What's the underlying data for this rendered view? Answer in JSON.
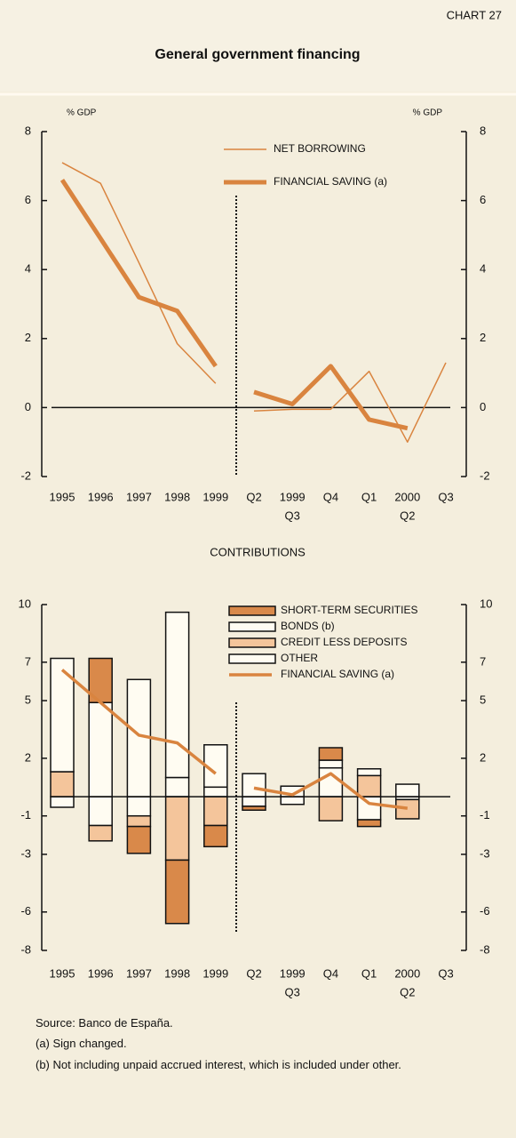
{
  "header": {
    "label": "CHART 27",
    "title": "General government financing"
  },
  "chart_data": [
    {
      "type": "line",
      "y_label": "% GDP",
      "y2_label": "% GDP",
      "categories": [
        "1995",
        "1996",
        "1997",
        "1998",
        "1999",
        null,
        "Q2",
        "Q3",
        "Q4",
        "Q1",
        "Q2",
        "Q3"
      ],
      "year_labels": [
        null,
        null,
        null,
        null,
        null,
        null,
        null,
        "1999",
        null,
        null,
        "2000",
        null
      ],
      "series": [
        {
          "name": "NET BORROWING",
          "color": "#d9843f",
          "line_width": 1.5,
          "values": [
            7.1,
            6.5,
            4.2,
            1.85,
            0.7,
            null,
            -0.1,
            -0.05,
            -0.05,
            1.05,
            -1.0,
            1.3
          ]
        },
        {
          "name": "FINANCIAL SAVING (a)",
          "color": "#d9843f",
          "line_width": 5,
          "values": [
            6.6,
            4.9,
            3.2,
            2.8,
            1.2,
            null,
            0.45,
            0.1,
            1.2,
            -0.35,
            -0.6,
            null
          ]
        }
      ],
      "ylim": [
        -2,
        8
      ],
      "yticks": [
        -2,
        0,
        2,
        4,
        6,
        8
      ],
      "y2lim": [
        -2,
        8
      ],
      "y2ticks": [
        -2,
        0,
        2,
        4,
        6,
        8
      ]
    },
    {
      "type": "stacked_bar",
      "title": "CONTRIBUTIONS",
      "categories": [
        "1995",
        "1996",
        "1997",
        "1998",
        "1999",
        null,
        "Q2",
        "Q3",
        "Q4",
        "Q1",
        "Q2",
        "Q3"
      ],
      "year_labels": [
        null,
        null,
        null,
        null,
        null,
        null,
        null,
        "1999",
        null,
        null,
        "2000",
        null
      ],
      "series": [
        {
          "name": "SHORT-TERM SECURITIES",
          "type": "bar",
          "color": "#d9894a",
          "values": [
            0,
            2.3,
            -1.4,
            -3.3,
            -1.1,
            null,
            -0.2,
            0,
            0.65,
            -0.35,
            0,
            null
          ]
        },
        {
          "name": "BONDS (b)",
          "type": "bar",
          "color": "#fffcf2",
          "values": [
            5.9,
            4.9,
            6.1,
            8.6,
            2.2,
            null,
            1.2,
            0.55,
            0.4,
            0.35,
            0.65,
            null
          ]
        },
        {
          "name": "CREDIT LESS DEPOSITS",
          "type": "bar",
          "color": "#f4c59b",
          "values": [
            1.3,
            -0.8,
            -0.55,
            -3.3,
            -1.5,
            null,
            0,
            0,
            -1.25,
            1.1,
            -1.0,
            null
          ]
        },
        {
          "name": "OTHER",
          "type": "bar",
          "color": "#fffcf2",
          "values": [
            -0.55,
            -1.5,
            -1.0,
            1.0,
            0.5,
            null,
            -0.5,
            -0.4,
            1.5,
            -1.2,
            -0.15,
            null
          ]
        },
        {
          "name": "FINANCIAL SAVING (a)",
          "type": "line",
          "color": "#d9843f",
          "line_width": 3.5,
          "values": [
            6.6,
            4.9,
            3.2,
            2.8,
            1.2,
            null,
            0.45,
            0.1,
            1.2,
            -0.35,
            -0.6,
            null
          ]
        }
      ],
      "ylim": [
        -8,
        10
      ],
      "yticks": [
        -8,
        -6,
        -3,
        -1,
        2,
        5,
        7,
        10
      ],
      "y2lim": [
        -8,
        10
      ],
      "y2ticks": [
        -8,
        -6,
        -3,
        -1,
        2,
        5,
        7,
        10
      ]
    }
  ],
  "notes": [
    "Source: Banco de España.",
    "(a)  Sign changed.",
    "(b)  Not including unpaid accrued interest, which is included under other."
  ]
}
